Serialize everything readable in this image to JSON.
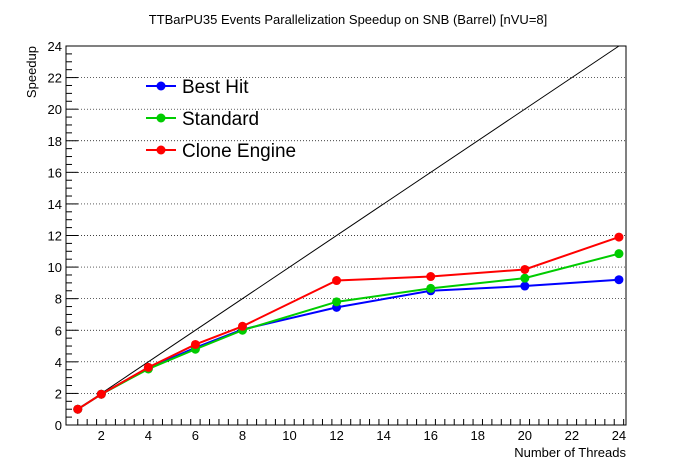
{
  "chart_data": {
    "type": "line",
    "title": "TTBarPU35 Events Parallelization Speedup on SNB (Barrel) [nVU=8]",
    "xlabel": "Number of Threads",
    "ylabel": "Speedup",
    "xlim": [
      0.5,
      24.3
    ],
    "ylim": [
      0,
      24
    ],
    "xticks": [
      2,
      4,
      6,
      8,
      10,
      12,
      14,
      16,
      18,
      20,
      22,
      24
    ],
    "yticks": [
      0,
      2,
      4,
      6,
      8,
      10,
      12,
      14,
      16,
      18,
      20,
      22,
      24
    ],
    "grid": "horizontal dotted",
    "legend_position": "top-left",
    "reference_line": {
      "x": [
        1,
        24
      ],
      "y": [
        1,
        24
      ],
      "color": "#000000"
    },
    "series": [
      {
        "name": "Best Hit",
        "color": "#0000ff",
        "x": [
          1,
          2,
          4,
          6,
          8,
          12,
          16,
          20,
          24
        ],
        "y": [
          1.0,
          1.95,
          3.6,
          4.9,
          6.05,
          7.45,
          8.5,
          8.8,
          9.2
        ]
      },
      {
        "name": "Standard",
        "color": "#00cc00",
        "x": [
          1,
          2,
          4,
          6,
          8,
          12,
          16,
          20,
          24
        ],
        "y": [
          1.0,
          1.95,
          3.55,
          4.8,
          6.0,
          7.8,
          8.65,
          9.3,
          10.85
        ]
      },
      {
        "name": "Clone Engine",
        "color": "#ff0000",
        "x": [
          1,
          2,
          4,
          6,
          8,
          12,
          16,
          20,
          24
        ],
        "y": [
          1.0,
          1.95,
          3.65,
          5.1,
          6.25,
          9.15,
          9.4,
          9.85,
          11.9
        ]
      }
    ]
  }
}
